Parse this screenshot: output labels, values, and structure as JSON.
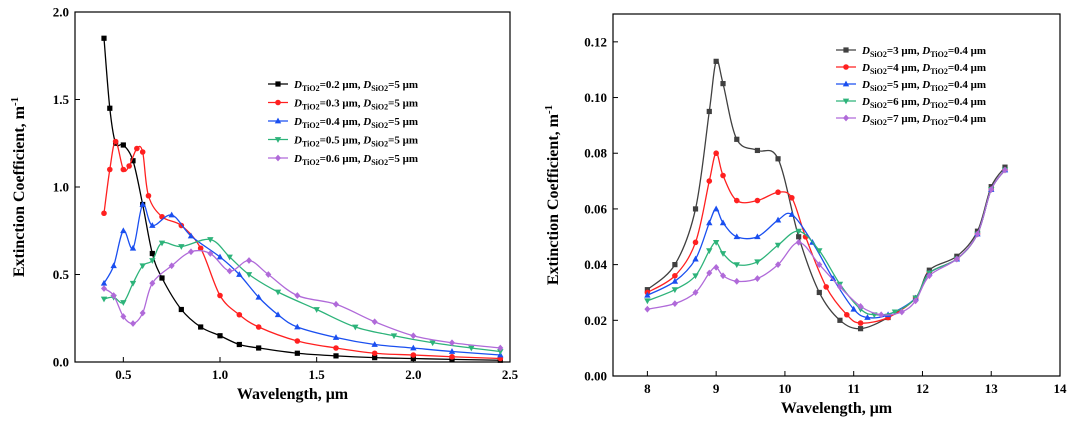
{
  "chart_data": [
    {
      "type": "line",
      "title": "",
      "xlabel": "Wavelength, μm",
      "ylabel": "Extinction Coefficient, m",
      "ylabel_sup": "-1",
      "xlim": [
        0.25,
        2.5
      ],
      "ylim": [
        0,
        2.0
      ],
      "xticks": [
        0.5,
        1.0,
        1.5,
        2.0,
        2.5
      ],
      "xtick_labels": [
        "0.5",
        "1.0",
        "1.5",
        "2.0",
        "2.5"
      ],
      "yticks": [
        0,
        0.5,
        1.0,
        1.5,
        2.0
      ],
      "ytick_labels": [
        "0.0",
        "0.5",
        "1.0",
        "1.5",
        "2.0"
      ],
      "legend_position": "top-right",
      "series": [
        {
          "name": "DTiO2=0.2 μm, DSiO2=5 μm",
          "legend_parts": [
            "D",
            "TiO2",
            "=0.2 μm, ",
            "D",
            "SiO2",
            "=5 μm"
          ],
          "color": "#000000",
          "marker": "square",
          "x": [
            0.4,
            0.43,
            0.46,
            0.5,
            0.55,
            0.6,
            0.65,
            0.7,
            0.8,
            0.9,
            1.0,
            1.1,
            1.2,
            1.4,
            1.6,
            1.8,
            2.0,
            2.2,
            2.45
          ],
          "y": [
            1.85,
            1.45,
            1.25,
            1.24,
            1.15,
            0.9,
            0.62,
            0.48,
            0.3,
            0.2,
            0.15,
            0.1,
            0.08,
            0.05,
            0.035,
            0.025,
            0.02,
            0.015,
            0.01
          ]
        },
        {
          "name": "DTiO2=0.3 μm, DSiO2=5 μm",
          "legend_parts": [
            "D",
            "TiO2",
            "=0.3 μm, ",
            "D",
            "SiO2",
            "=5 μm"
          ],
          "color": "#ff2020",
          "marker": "circle",
          "x": [
            0.4,
            0.43,
            0.46,
            0.5,
            0.53,
            0.57,
            0.6,
            0.63,
            0.7,
            0.8,
            0.9,
            1.0,
            1.1,
            1.2,
            1.4,
            1.6,
            1.8,
            2.0,
            2.2,
            2.45
          ],
          "y": [
            0.85,
            1.1,
            1.26,
            1.1,
            1.12,
            1.22,
            1.2,
            0.95,
            0.83,
            0.78,
            0.65,
            0.38,
            0.27,
            0.2,
            0.12,
            0.08,
            0.05,
            0.04,
            0.03,
            0.02
          ]
        },
        {
          "name": "DTiO2=0.4 μm, DSiO2=5 μm",
          "legend_parts": [
            "D",
            "TiO2",
            "=0.4 μm, ",
            "D",
            "SiO2",
            "=5 μm"
          ],
          "color": "#1a4ff0",
          "marker": "triangle-up",
          "x": [
            0.4,
            0.45,
            0.5,
            0.55,
            0.6,
            0.65,
            0.75,
            0.85,
            1.0,
            1.1,
            1.2,
            1.3,
            1.4,
            1.6,
            1.8,
            2.0,
            2.2,
            2.45
          ],
          "y": [
            0.45,
            0.55,
            0.75,
            0.65,
            0.9,
            0.78,
            0.84,
            0.72,
            0.6,
            0.5,
            0.37,
            0.27,
            0.2,
            0.14,
            0.1,
            0.08,
            0.06,
            0.04
          ]
        },
        {
          "name": "DTiO2=0.5 μm, DSiO2=5 μm",
          "legend_parts": [
            "D",
            "TiO2",
            "=0.5 μm, ",
            "D",
            "SiO2",
            "=5 μm"
          ],
          "color": "#2db37a",
          "marker": "triangle-down",
          "x": [
            0.4,
            0.45,
            0.5,
            0.55,
            0.6,
            0.65,
            0.7,
            0.8,
            0.95,
            1.05,
            1.15,
            1.3,
            1.5,
            1.7,
            1.9,
            2.1,
            2.3,
            2.45
          ],
          "y": [
            0.36,
            0.37,
            0.34,
            0.45,
            0.55,
            0.58,
            0.68,
            0.66,
            0.7,
            0.6,
            0.5,
            0.4,
            0.3,
            0.2,
            0.15,
            0.11,
            0.08,
            0.06
          ]
        },
        {
          "name": "DTiO2=0.6 μm, DSiO2=5 μm",
          "legend_parts": [
            "D",
            "TiO2",
            "=0.6 μm, ",
            "D",
            "SiO2",
            "=5 μm"
          ],
          "color": "#b06ad9",
          "marker": "diamond",
          "x": [
            0.4,
            0.45,
            0.5,
            0.55,
            0.6,
            0.65,
            0.75,
            0.85,
            0.95,
            1.05,
            1.15,
            1.25,
            1.4,
            1.6,
            1.8,
            2.0,
            2.2,
            2.45
          ],
          "y": [
            0.42,
            0.38,
            0.26,
            0.22,
            0.28,
            0.45,
            0.55,
            0.63,
            0.62,
            0.52,
            0.58,
            0.5,
            0.38,
            0.33,
            0.23,
            0.15,
            0.11,
            0.08
          ]
        }
      ]
    },
    {
      "type": "line",
      "title": "",
      "xlabel": "Wavelength, μm",
      "ylabel": "Extinction Coefficient, m",
      "ylabel_sup": "-1",
      "xlim": [
        7.5,
        14
      ],
      "ylim": [
        0,
        0.13
      ],
      "xticks": [
        8,
        9,
        10,
        11,
        12,
        13,
        14
      ],
      "xtick_labels": [
        "8",
        "9",
        "10",
        "11",
        "12",
        "13",
        "14"
      ],
      "yticks": [
        0,
        0.02,
        0.04,
        0.06,
        0.08,
        0.1,
        0.12
      ],
      "ytick_labels": [
        "0.00",
        "0.02",
        "0.04",
        "0.06",
        "0.08",
        "0.10",
        "0.12"
      ],
      "legend_position": "top-right",
      "series": [
        {
          "name": "DSiO2=3 μm, DTiO2=0.4 μm",
          "legend_parts": [
            "D",
            "SiO2",
            "=3 μm, ",
            "D",
            "TiO2",
            "=0.4 μm"
          ],
          "color": "#404040",
          "marker": "square",
          "x": [
            8.0,
            8.4,
            8.7,
            8.9,
            9.0,
            9.1,
            9.3,
            9.6,
            9.9,
            10.2,
            10.5,
            10.8,
            11.1,
            11.5,
            11.9,
            12.1,
            12.5,
            12.8,
            13.0,
            13.2
          ],
          "y": [
            0.031,
            0.04,
            0.06,
            0.095,
            0.113,
            0.105,
            0.085,
            0.081,
            0.078,
            0.05,
            0.03,
            0.02,
            0.017,
            0.021,
            0.028,
            0.038,
            0.043,
            0.052,
            0.068,
            0.075
          ]
        },
        {
          "name": "DSiO2=4 μm, DTiO2=0.4 μm",
          "legend_parts": [
            "D",
            "SiO2",
            "=4 μm, ",
            "D",
            "TiO2",
            "=0.4 μm"
          ],
          "color": "#ff2020",
          "marker": "circle",
          "x": [
            8.0,
            8.4,
            8.7,
            8.9,
            9.0,
            9.1,
            9.3,
            9.6,
            9.9,
            10.1,
            10.3,
            10.6,
            10.9,
            11.1,
            11.5,
            11.9,
            12.1,
            12.5,
            12.8,
            13.0,
            13.2
          ],
          "y": [
            0.03,
            0.036,
            0.048,
            0.07,
            0.08,
            0.072,
            0.063,
            0.063,
            0.066,
            0.064,
            0.05,
            0.032,
            0.022,
            0.019,
            0.021,
            0.028,
            0.037,
            0.042,
            0.051,
            0.067,
            0.074
          ]
        },
        {
          "name": "DSiO2=5 μm, DTiO2=0.4 μm",
          "legend_parts": [
            "D",
            "SiO2",
            "=5 μm, ",
            "D",
            "TiO2",
            "=0.4 μm"
          ],
          "color": "#1a4ff0",
          "marker": "triangle-up",
          "x": [
            8.0,
            8.4,
            8.7,
            8.9,
            9.0,
            9.1,
            9.3,
            9.6,
            9.9,
            10.1,
            10.4,
            10.7,
            11.0,
            11.2,
            11.5,
            11.9,
            12.1,
            12.5,
            12.8,
            13.0,
            13.2
          ],
          "y": [
            0.029,
            0.034,
            0.042,
            0.055,
            0.06,
            0.055,
            0.05,
            0.05,
            0.056,
            0.058,
            0.048,
            0.035,
            0.024,
            0.021,
            0.022,
            0.028,
            0.037,
            0.042,
            0.051,
            0.067,
            0.074
          ]
        },
        {
          "name": "DSiO2=6 μm, DTiO2=0.4 μm",
          "legend_parts": [
            "D",
            "SiO2",
            "=6 μm, ",
            "D",
            "TiO2",
            "=0.4 μm"
          ],
          "color": "#2db37a",
          "marker": "triangle-down",
          "x": [
            8.0,
            8.4,
            8.7,
            8.9,
            9.0,
            9.1,
            9.3,
            9.6,
            9.9,
            10.2,
            10.5,
            10.8,
            11.1,
            11.3,
            11.6,
            11.9,
            12.1,
            12.5,
            12.8,
            13.0,
            13.2
          ],
          "y": [
            0.027,
            0.031,
            0.036,
            0.045,
            0.048,
            0.044,
            0.04,
            0.041,
            0.047,
            0.052,
            0.045,
            0.033,
            0.024,
            0.022,
            0.023,
            0.028,
            0.037,
            0.042,
            0.051,
            0.067,
            0.074
          ]
        },
        {
          "name": "DSiO2=7 μm, DTiO2=0.4 μm",
          "legend_parts": [
            "D",
            "SiO2",
            "=7 μm, ",
            "D",
            "TiO2",
            "=0.4 μm"
          ],
          "color": "#b06ad9",
          "marker": "diamond",
          "x": [
            8.0,
            8.4,
            8.7,
            8.9,
            9.0,
            9.1,
            9.3,
            9.6,
            9.9,
            10.2,
            10.5,
            10.8,
            11.1,
            11.4,
            11.7,
            11.9,
            12.1,
            12.5,
            12.8,
            13.0,
            13.2
          ],
          "y": [
            0.024,
            0.026,
            0.03,
            0.037,
            0.039,
            0.036,
            0.034,
            0.035,
            0.04,
            0.048,
            0.04,
            0.032,
            0.025,
            0.022,
            0.023,
            0.027,
            0.036,
            0.042,
            0.051,
            0.067,
            0.074
          ]
        }
      ]
    }
  ]
}
